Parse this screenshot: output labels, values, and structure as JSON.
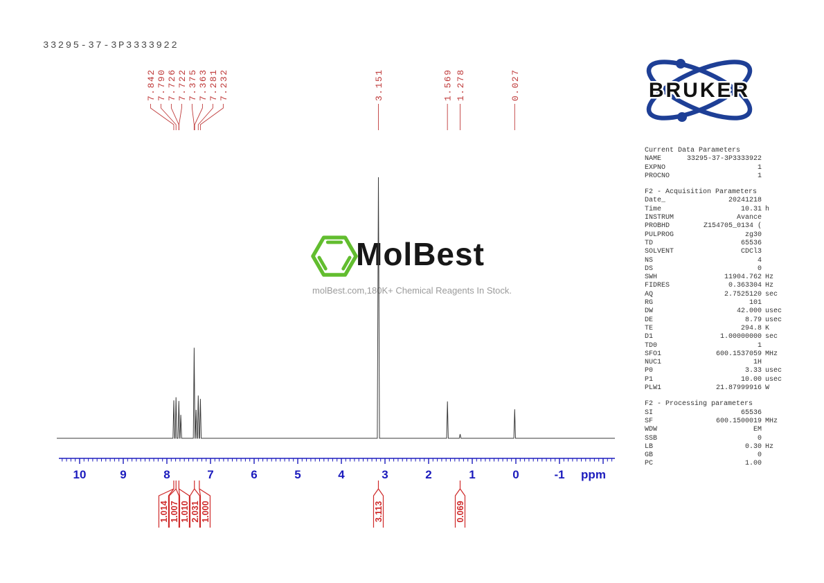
{
  "title": "33295-37-3P3333922",
  "colors": {
    "axis_blue": "#1b1bbd",
    "annotation_red": "#bf3a3a",
    "integral_red": "#cf2a2a",
    "trace_gray": "#3a3a3a",
    "logo_blue": "#1e3f96",
    "brand_green": "#62bd2f"
  },
  "logo": {
    "text": "BRUKER"
  },
  "watermark": {
    "brand": "MolBest",
    "caption": "molBest.com,180K+ Chemical Reagents In Stock."
  },
  "axis": {
    "unit": "ppm",
    "tick_labels": [
      "10",
      "9",
      "8",
      "7",
      "6",
      "5",
      "4",
      "3",
      "2",
      "1",
      "0",
      "-1"
    ]
  },
  "chart_data": {
    "type": "line",
    "title": "1H NMR spectrum 33295-37-3P3333922",
    "xlabel": "ppm",
    "x_range": [
      10.5,
      -2.3
    ],
    "grid": false,
    "peak_labels": [
      "7.842",
      "7.790",
      "7.726",
      "7.722",
      "7.375",
      "7.363",
      "7.281",
      "7.232",
      "3.151",
      "1.569",
      "1.278",
      "0.027"
    ],
    "peaks": [
      {
        "ppm": 7.842,
        "rel_intensity": 0.145
      },
      {
        "ppm": 7.79,
        "rel_intensity": 0.157
      },
      {
        "ppm": 7.726,
        "rel_intensity": 0.143
      },
      {
        "ppm": 7.722,
        "rel_intensity": 0.09
      },
      {
        "ppm": 7.375,
        "rel_intensity": 0.347
      },
      {
        "ppm": 7.363,
        "rel_intensity": 0.109
      },
      {
        "ppm": 7.281,
        "rel_intensity": 0.164
      },
      {
        "ppm": 7.232,
        "rel_intensity": 0.151
      },
      {
        "ppm": 3.151,
        "rel_intensity": 1.0
      },
      {
        "ppm": 1.569,
        "rel_intensity": 0.141
      },
      {
        "ppm": 1.278,
        "rel_intensity": 0.016
      },
      {
        "ppm": 0.027,
        "rel_intensity": 0.111
      }
    ],
    "integrals": [
      {
        "value": "1.014",
        "ppm": 7.842
      },
      {
        "value": "1.007",
        "ppm": 7.79
      },
      {
        "value": "1.010",
        "ppm": 7.724
      },
      {
        "value": "2.031",
        "ppm": 7.369
      },
      {
        "value": "1.000",
        "ppm": 7.256
      },
      {
        "value": "3.113",
        "ppm": 3.151
      },
      {
        "value": "0.069",
        "ppm": 1.278
      }
    ]
  },
  "params": {
    "sections": [
      {
        "header": "Current Data Parameters",
        "rows": [
          [
            "NAME",
            "33295-37-3P3333922",
            ""
          ],
          [
            "EXPNO",
            "1",
            ""
          ],
          [
            "PROCNO",
            "1",
            ""
          ]
        ]
      },
      {
        "header": "F2 - Acquisition Parameters",
        "rows": [
          [
            "Date_",
            "20241218",
            ""
          ],
          [
            "Time",
            "10.31",
            "h"
          ],
          [
            "INSTRUM",
            "Avance",
            ""
          ],
          [
            "PROBHD",
            "Z154705_0134 (",
            ""
          ],
          [
            "PULPROG",
            "zg30",
            ""
          ],
          [
            "TD",
            "65536",
            ""
          ],
          [
            "SOLVENT",
            "CDCl3",
            ""
          ],
          [
            "NS",
            "4",
            ""
          ],
          [
            "DS",
            "0",
            ""
          ],
          [
            "SWH",
            "11904.762",
            "Hz"
          ],
          [
            "FIDRES",
            "0.363304",
            "Hz"
          ],
          [
            "AQ",
            "2.7525120",
            "sec"
          ],
          [
            "RG",
            "101",
            ""
          ],
          [
            "DW",
            "42.000",
            "usec"
          ],
          [
            "DE",
            "8.79",
            "usec"
          ],
          [
            "TE",
            "294.8",
            "K"
          ],
          [
            "D1",
            "1.00000000",
            "sec"
          ],
          [
            "TD0",
            "1",
            ""
          ],
          [
            "SFO1",
            "600.1537059",
            "MHz"
          ],
          [
            "NUC1",
            "1H",
            ""
          ],
          [
            "P0",
            "3.33",
            "usec"
          ],
          [
            "P1",
            "10.00",
            "usec"
          ],
          [
            "PLW1",
            "21.87999916",
            "W"
          ]
        ]
      },
      {
        "header": "F2 - Processing parameters",
        "rows": [
          [
            "SI",
            "65536",
            ""
          ],
          [
            "SF",
            "600.1500019",
            "MHz"
          ],
          [
            "WDW",
            "EM",
            ""
          ],
          [
            "SSB",
            "0",
            ""
          ],
          [
            "LB",
            "0.30",
            "Hz"
          ],
          [
            "GB",
            "0",
            ""
          ],
          [
            "PC",
            "1.00",
            ""
          ]
        ]
      }
    ]
  }
}
